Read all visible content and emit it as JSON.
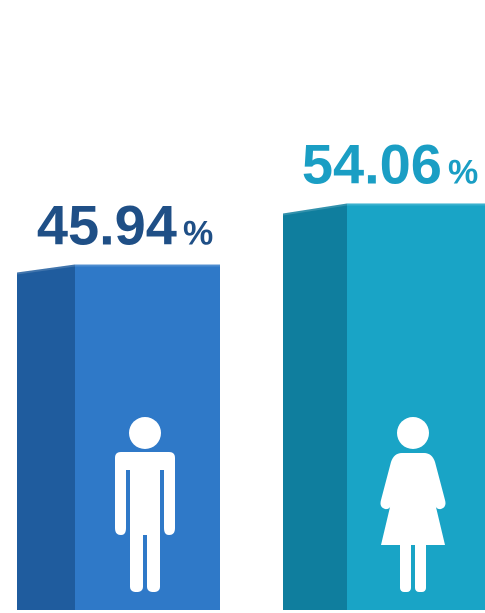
{
  "chart_data": {
    "type": "bar",
    "categories": [
      "male",
      "female"
    ],
    "values": [
      45.94,
      54.06
    ],
    "value_labels": [
      "45.94",
      "54.06"
    ],
    "unit": "%",
    "title": "",
    "xlabel": "",
    "ylabel": "",
    "ylim": [
      0,
      70
    ],
    "grid": false,
    "legend": "none",
    "icons": [
      "male-figure-icon",
      "female-figure-icon"
    ],
    "colors": {
      "male_front": "#2f79c8",
      "male_side": "#1f5c9e",
      "male_label": "#1f4f86",
      "female_front": "#19a4c6",
      "female_side": "#0f7e9e",
      "female_label": "#1a9ec4"
    }
  }
}
